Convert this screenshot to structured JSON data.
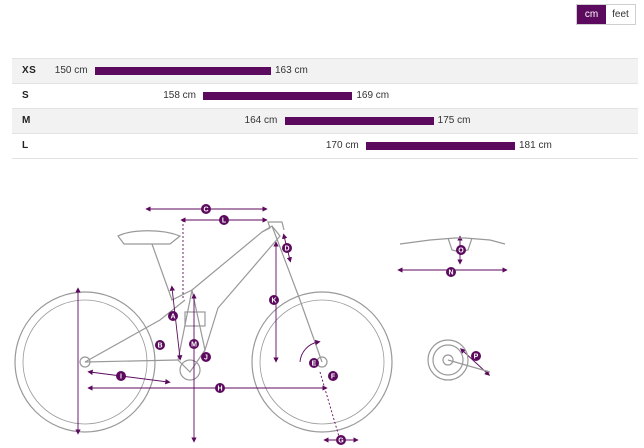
{
  "unit_toggle": {
    "options": [
      "cm",
      "feet"
    ],
    "selected": "cm"
  },
  "sizes": [
    {
      "label": "XS",
      "min": "150 cm",
      "max": "163 cm",
      "min_cm": 150,
      "max_cm": 163
    },
    {
      "label": "S",
      "min": "158 cm",
      "max": "169 cm",
      "min_cm": 158,
      "max_cm": 169
    },
    {
      "label": "M",
      "min": "164 cm",
      "max": "175 cm",
      "min_cm": 164,
      "max_cm": 175
    },
    {
      "label": "L",
      "min": "170 cm",
      "max": "181 cm",
      "min_cm": 170,
      "max_cm": 181
    }
  ],
  "geometry_markers": [
    "A",
    "B",
    "C",
    "D",
    "E",
    "F",
    "G",
    "H",
    "I",
    "J",
    "K",
    "L",
    "M",
    "N",
    "O",
    "P"
  ],
  "colors": {
    "accent": "#5c0a5e",
    "bike_line": "#999999"
  }
}
